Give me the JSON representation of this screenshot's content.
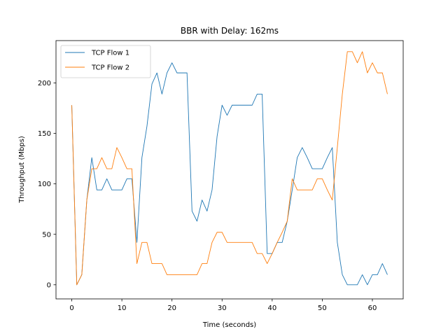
{
  "chart_data": {
    "type": "line",
    "title": "BBR with Delay: 162ms",
    "xlabel": "Time (seconds)",
    "ylabel": "Throughput (Mbps)",
    "xlim": [
      -3.15,
      66.15
    ],
    "ylim": [
      -14,
      242
    ],
    "xticks": [
      0,
      10,
      20,
      30,
      40,
      50,
      60
    ],
    "yticks": [
      0,
      50,
      100,
      150,
      200
    ],
    "grid": false,
    "legend_position": "upper-left",
    "x": [
      0,
      1,
      2,
      3,
      4,
      5,
      6,
      7,
      8,
      9,
      10,
      11,
      12,
      13,
      14,
      15,
      16,
      17,
      18,
      19,
      20,
      21,
      22,
      23,
      24,
      25,
      26,
      27,
      28,
      29,
      30,
      31,
      32,
      33,
      34,
      35,
      36,
      37,
      38,
      39,
      40,
      41,
      42,
      43,
      44,
      45,
      46,
      47,
      48,
      49,
      50,
      51,
      52,
      53,
      54,
      55,
      56,
      57,
      58,
      59,
      60,
      61,
      62,
      63
    ],
    "series": [
      {
        "name": "TCP Flow 1",
        "color": "#1f77b4",
        "values": [
          178,
          0,
          10,
          84,
          126,
          94,
          94,
          105,
          94,
          94,
          94,
          105,
          105,
          42,
          126,
          157,
          199,
          210,
          189,
          210,
          220,
          210,
          210,
          210,
          73,
          63,
          84,
          73,
          94,
          147,
          178,
          168,
          178,
          178,
          178,
          178,
          178,
          189,
          189,
          31,
          31,
          42,
          42,
          63,
          94,
          126,
          136,
          126,
          115,
          115,
          115,
          126,
          136,
          42,
          10,
          0,
          0,
          0,
          10,
          0,
          10,
          10,
          21,
          10
        ]
      },
      {
        "name": "TCP Flow 2",
        "color": "#ff7f0e",
        "values": [
          178,
          0,
          10,
          84,
          115,
          115,
          126,
          115,
          115,
          136,
          126,
          115,
          115,
          21,
          42,
          42,
          21,
          21,
          21,
          10,
          10,
          10,
          10,
          10,
          10,
          10,
          21,
          21,
          42,
          52,
          52,
          42,
          42,
          42,
          42,
          42,
          42,
          31,
          31,
          21,
          31,
          42,
          52,
          63,
          105,
          94,
          94,
          94,
          94,
          105,
          105,
          94,
          84,
          136,
          189,
          231,
          231,
          220,
          231,
          210,
          220,
          210,
          210,
          189
        ]
      }
    ]
  }
}
